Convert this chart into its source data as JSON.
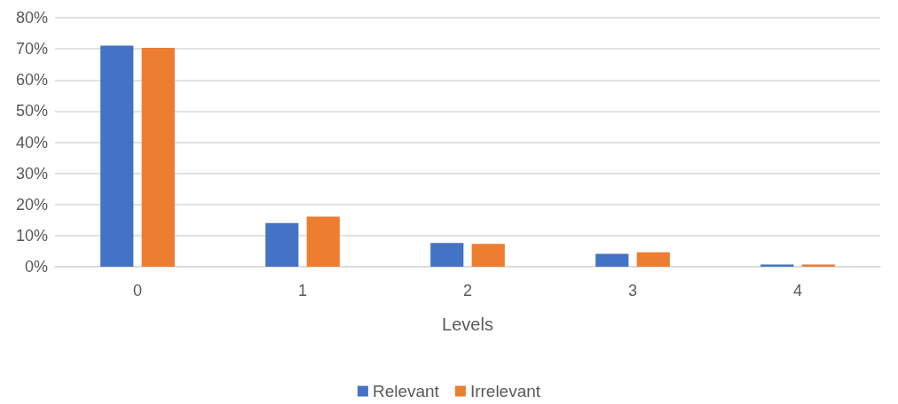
{
  "chart_data": {
    "type": "bar",
    "xlabel": "Levels",
    "categories": [
      "0",
      "1",
      "2",
      "3",
      "4"
    ],
    "series": [
      {
        "name": "Relevant",
        "color": "#4472c4",
        "values": [
          71.0,
          14.0,
          7.6,
          4.1,
          0.7
        ]
      },
      {
        "name": "Irrelevant",
        "color": "#ed7d31",
        "values": [
          70.3,
          16.1,
          7.3,
          4.6,
          0.7
        ]
      }
    ],
    "ylim": [
      0,
      80
    ],
    "yticks": [
      {
        "value": 0,
        "label": "0%"
      },
      {
        "value": 10,
        "label": "10%"
      },
      {
        "value": 20,
        "label": "20%"
      },
      {
        "value": 30,
        "label": "30%"
      },
      {
        "value": 40,
        "label": "40%"
      },
      {
        "value": 50,
        "label": "50%"
      },
      {
        "value": 60,
        "label": "60%"
      },
      {
        "value": 70,
        "label": "70%"
      },
      {
        "value": 80,
        "label": "80%"
      }
    ],
    "grid": true,
    "legend": "bottom"
  }
}
